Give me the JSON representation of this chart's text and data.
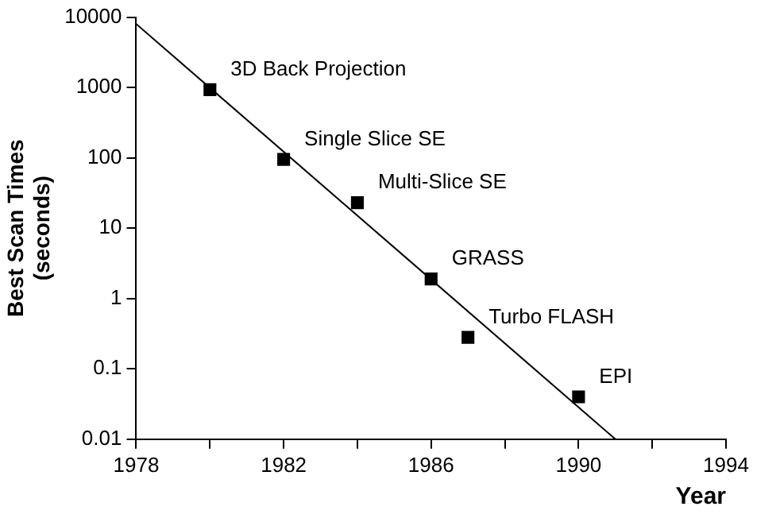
{
  "chart_data": {
    "type": "scatter",
    "xlabel": "Year",
    "ylabel": "Best Scan Times\n(seconds)",
    "log": "y",
    "grid": false,
    "legend": false,
    "xlim": [
      1978,
      1994
    ],
    "xticks": [
      1978,
      {
        "value": 1980,
        "label": null
      },
      1982,
      {
        "value": 1984,
        "label": null
      },
      1986,
      {
        "value": 1988,
        "label": null
      },
      1990,
      {
        "value": 1992,
        "label": null
      },
      1994
    ],
    "ylim": [
      0.01,
      10000
    ],
    "yticks": [
      0.01,
      0.1,
      1,
      10,
      100,
      1000,
      10000
    ],
    "series": [
      {
        "marker": "square",
        "color": "#000000",
        "x": [
          1980,
          1982,
          1984,
          1986,
          1987,
          1990
        ],
        "values": [
          930,
          95,
          23,
          1.9,
          0.28,
          0.04
        ]
      },
      {
        "type": "line",
        "marker": "none",
        "color": "#000000",
        "x": [
          1978,
          1991
        ],
        "values": [
          8000,
          0.01
        ]
      }
    ],
    "annotations": [
      {
        "text": "3D Back Projection",
        "x": 1980,
        "y": 930
      },
      {
        "text": "Single Slice SE",
        "x": 1982,
        "y": 95
      },
      {
        "text": "Multi-Slice SE",
        "x": 1984,
        "y": 23
      },
      {
        "text": "GRASS",
        "x": 1986,
        "y": 1.9
      },
      {
        "text": "Turbo FLASH",
        "x": 1987,
        "y": 0.28
      },
      {
        "text": "EPI",
        "x": 1990,
        "y": 0.04
      }
    ]
  }
}
